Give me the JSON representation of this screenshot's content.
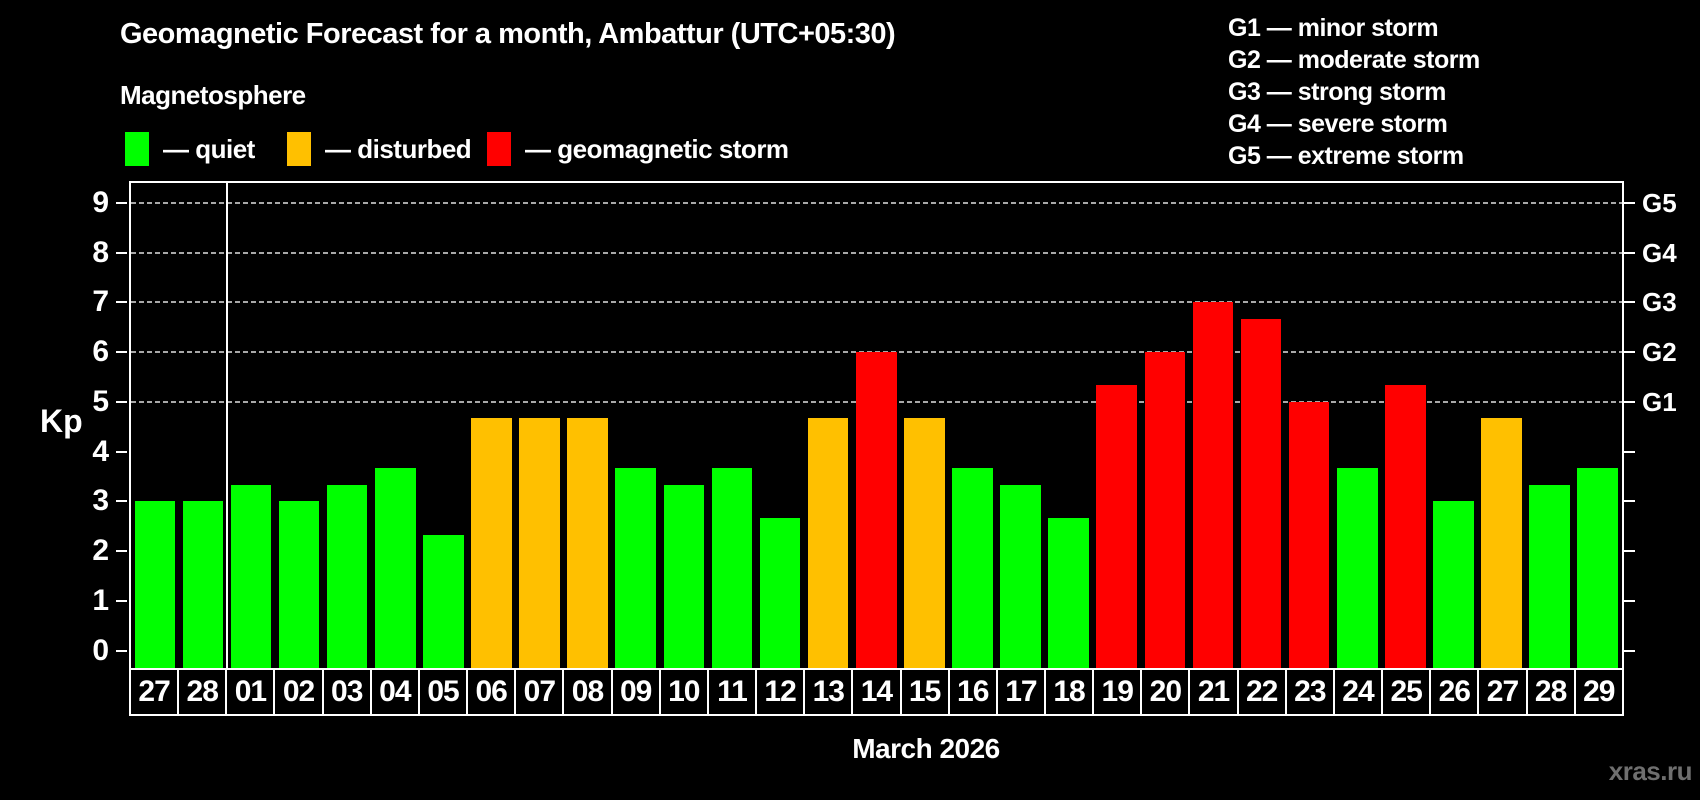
{
  "header": {
    "title": "Geomagnetic Forecast for a month, Ambattur (UTC+05:30)",
    "subtitle": "Magnetosphere"
  },
  "legend": {
    "items": [
      {
        "key": "quiet",
        "label": "— quiet",
        "color": "#00ff00"
      },
      {
        "key": "disturbed",
        "label": "— disturbed",
        "color": "#ffc000"
      },
      {
        "key": "storm",
        "label": "— geomagnetic storm",
        "color": "#ff0000"
      }
    ]
  },
  "g_legend": {
    "lines": [
      "G1 — minor storm",
      "G2 — moderate storm",
      "G3 — strong storm",
      "G4 — severe storm",
      "G5 — extreme storm"
    ]
  },
  "watermark": "xras.ru",
  "chart_data": {
    "type": "bar",
    "title": "Geomagnetic Forecast for a month, Ambattur (UTC+05:30)",
    "subtitle": "Magnetosphere",
    "xlabel": "March 2026",
    "ylabel": "Kp",
    "ylim": [
      0,
      9.4
    ],
    "yticks": [
      0,
      1,
      2,
      3,
      4,
      5,
      6,
      7,
      8,
      9
    ],
    "grid_levels": [
      5,
      6,
      7,
      8,
      9
    ],
    "grid_style": "dashed gray horizontal lines at storm levels only",
    "legend_position": "top-left",
    "right_axis_labels": [
      {
        "label": "G1",
        "kp": 5
      },
      {
        "label": "G2",
        "kp": 6
      },
      {
        "label": "G3",
        "kp": 7
      },
      {
        "label": "G4",
        "kp": 8
      },
      {
        "label": "G5",
        "kp": 9
      }
    ],
    "month_boundary_after_index": 1,
    "categories": [
      "27",
      "28",
      "01",
      "02",
      "03",
      "04",
      "05",
      "06",
      "07",
      "08",
      "09",
      "10",
      "11",
      "12",
      "13",
      "14",
      "15",
      "16",
      "17",
      "18",
      "19",
      "20",
      "21",
      "22",
      "23",
      "24",
      "25",
      "26",
      "27",
      "28",
      "29"
    ],
    "values": [
      3,
      3,
      3.33,
      3,
      3.33,
      3.67,
      2.33,
      4.67,
      4.67,
      4.67,
      3.67,
      3.33,
      3.67,
      2.67,
      4.67,
      6,
      4.67,
      3.67,
      3.33,
      2.67,
      5.33,
      6,
      7,
      6.67,
      5,
      3.67,
      5.33,
      3,
      4.67,
      3.33,
      3.67
    ],
    "statuses": [
      "quiet",
      "quiet",
      "quiet",
      "quiet",
      "quiet",
      "quiet",
      "quiet",
      "disturbed",
      "disturbed",
      "disturbed",
      "quiet",
      "quiet",
      "quiet",
      "quiet",
      "disturbed",
      "storm",
      "disturbed",
      "quiet",
      "quiet",
      "quiet",
      "storm",
      "storm",
      "storm",
      "storm",
      "storm",
      "quiet",
      "storm",
      "quiet",
      "disturbed",
      "quiet",
      "quiet"
    ],
    "status_colors": {
      "quiet": "#00ff00",
      "disturbed": "#ffc000",
      "storm": "#ff0000"
    }
  }
}
